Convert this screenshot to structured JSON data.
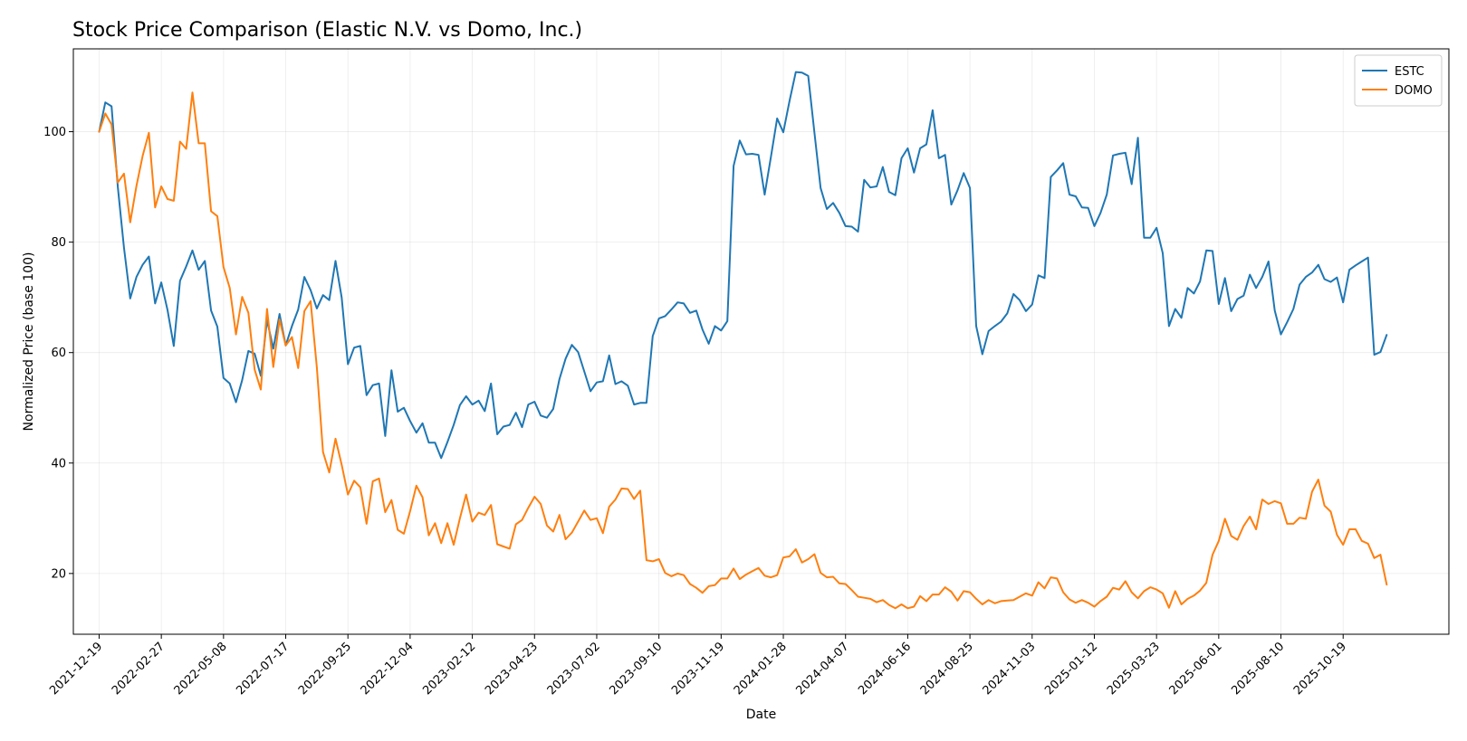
{
  "chart_data": {
    "type": "line",
    "title": "Stock Price Comparison (Elastic N.V. vs Domo, Inc.)",
    "xlabel": "Date",
    "ylabel": "Normalized Price (base 100)",
    "x_ticks": [
      "2021-12-19",
      "2022-02-27",
      "2022-05-08",
      "2022-07-17",
      "2022-09-25",
      "2022-12-04",
      "2023-02-12",
      "2023-04-23",
      "2023-07-02",
      "2023-09-10",
      "2023-11-19",
      "2024-01-28",
      "2024-04-07",
      "2024-06-16",
      "2024-08-25",
      "2024-11-03",
      "2025-01-12",
      "2025-03-23",
      "2025-06-01",
      "2025-08-10",
      "2025-10-19"
    ],
    "y_ticks": [
      20,
      40,
      60,
      80,
      100
    ],
    "xlim": [
      "2021-11-20",
      "2026-02-15"
    ],
    "ylim": [
      9,
      115
    ],
    "grid": true,
    "legend_position": "top-right",
    "x_start": "2021-12-19",
    "x_step_days": 7,
    "series": [
      {
        "name": "ESTC",
        "color": "#1f77b4",
        "values": [
          100,
          105.3,
          104.6,
          90,
          79,
          69.8,
          73.7,
          75.9,
          77.4,
          68.9,
          72.7,
          67.7,
          61.2,
          73,
          75.6,
          78.5,
          75,
          76.6,
          67.6,
          64.7,
          55.4,
          54.4,
          51,
          55,
          60.3,
          59.8,
          55.8,
          65.9,
          60.7,
          67,
          61.3,
          64.8,
          67.8,
          73.7,
          71.3,
          68,
          70.4,
          69.5,
          76.6,
          70,
          57.9,
          60.9,
          61.2,
          52.3,
          54.1,
          54.4,
          44.9,
          56.8,
          49.3,
          50,
          47.6,
          45.5,
          47.2,
          43.7,
          43.7,
          40.9,
          43.8,
          46.9,
          50.5,
          52.1,
          50.6,
          51.3,
          49.4,
          54.4,
          45.2,
          46.6,
          46.9,
          49.1,
          46.5,
          50.6,
          51.1,
          48.6,
          48.2,
          49.8,
          55.2,
          58.9,
          61.4,
          60.1,
          56.6,
          53,
          54.6,
          54.8,
          59.5,
          54.3,
          54.8,
          54,
          50.6,
          50.9,
          50.9,
          63,
          66.2,
          66.6,
          67.8,
          69.1,
          68.9,
          67.2,
          67.6,
          64.2,
          61.6,
          64.8,
          64,
          65.7,
          93.8,
          98.4,
          95.9,
          96,
          95.8,
          88.6,
          95.4,
          102.4,
          99.9,
          105.6,
          110.8,
          110.7,
          110.1,
          99.8,
          89.8,
          86,
          87.1,
          85.3,
          82.9,
          82.8,
          81.9,
          91.3,
          89.9,
          90.1,
          93.6,
          89.1,
          88.5,
          95.2,
          97,
          92.6,
          97,
          97.7,
          103.9,
          95.2,
          95.8,
          86.8,
          89.4,
          92.5,
          89.8,
          64.8,
          59.7,
          63.9,
          64.8,
          65.6,
          67.1,
          70.6,
          69.5,
          67.5,
          68.7,
          74,
          73.5,
          91.8,
          93,
          94.3,
          88.6,
          88.3,
          86.3,
          86.2,
          82.9,
          85.3,
          88.6,
          95.7,
          96,
          96.2,
          90.5,
          98.9,
          80.8,
          80.8,
          82.6,
          78,
          64.8,
          67.9,
          66.3,
          71.7,
          70.7,
          72.9,
          78.5,
          78.4,
          68.8,
          73.5,
          67.5,
          69.7,
          70.3,
          74.1,
          71.7,
          73.7,
          76.5,
          67.6,
          63.3,
          65.5,
          67.9,
          72.3,
          73.7,
          74.5,
          75.9,
          73.3,
          72.8,
          73.6,
          69.1,
          75,
          75.8,
          76.5,
          77.2,
          59.6,
          60.1,
          63.2
        ]
      },
      {
        "name": "DOMO",
        "color": "#ff7f0e",
        "values": [
          100,
          103.3,
          101.3,
          90.8,
          92.4,
          83.6,
          90.2,
          95.6,
          99.8,
          86.3,
          90.1,
          87.8,
          87.5,
          98.2,
          96.9,
          107.1,
          97.9,
          97.9,
          85.6,
          84.7,
          75.5,
          71.7,
          63.3,
          70.1,
          67.2,
          56.9,
          53.3,
          67.9,
          57.4,
          66,
          61.3,
          62.8,
          57.2,
          67.5,
          69.3,
          57.3,
          42,
          38.3,
          44.4,
          39.7,
          34.3,
          36.8,
          35.6,
          29,
          36.7,
          37.2,
          31.1,
          33.3,
          27.9,
          27.2,
          31.3,
          35.9,
          33.8,
          26.9,
          29.1,
          25.5,
          29.1,
          25.2,
          30,
          34.3,
          29.4,
          31,
          30.6,
          32.4,
          25.3,
          24.9,
          24.5,
          28.9,
          29.7,
          31.9,
          33.9,
          32.6,
          28.7,
          27.6,
          30.6,
          26.2,
          27.4,
          29.4,
          31.4,
          29.7,
          30,
          27.3,
          32.1,
          33.4,
          35.4,
          35.3,
          33.5,
          35,
          22.4,
          22.2,
          22.6,
          20.1,
          19.5,
          20,
          19.7,
          18.1,
          17.4,
          16.5,
          17.7,
          17.9,
          19.1,
          19.1,
          20.9,
          19,
          19.8,
          20.4,
          21,
          19.6,
          19.3,
          19.7,
          22.9,
          23.1,
          24.4,
          22,
          22.6,
          23.5,
          20.1,
          19.3,
          19.4,
          18.2,
          18.1,
          17,
          15.8,
          15.6,
          15.4,
          14.8,
          15.2,
          14.3,
          13.7,
          14.4,
          13.7,
          14,
          15.9,
          15,
          16.2,
          16.2,
          17.5,
          16.7,
          15.1,
          16.8,
          16.6,
          15.4,
          14.4,
          15.2,
          14.6,
          15,
          15.1,
          15.2,
          15.8,
          16.4,
          16,
          18.4,
          17.3,
          19.3,
          19.1,
          16.6,
          15.3,
          14.7,
          15.2,
          14.7,
          14,
          15,
          15.8,
          17.4,
          17.1,
          18.6,
          16.6,
          15.5,
          16.8,
          17.5,
          17.1,
          16.4,
          13.8,
          16.8,
          14.4,
          15.4,
          16,
          16.9,
          18.3,
          23.4,
          25.9,
          29.9,
          26.8,
          26.1,
          28.6,
          30.3,
          28,
          33.4,
          32.6,
          33.1,
          32.7,
          29,
          29,
          30.1,
          29.9,
          34.8,
          37,
          32.3,
          31.2,
          27,
          25.2,
          28,
          28,
          25.9,
          25.4,
          22.8,
          23.4,
          18
        ]
      }
    ]
  }
}
